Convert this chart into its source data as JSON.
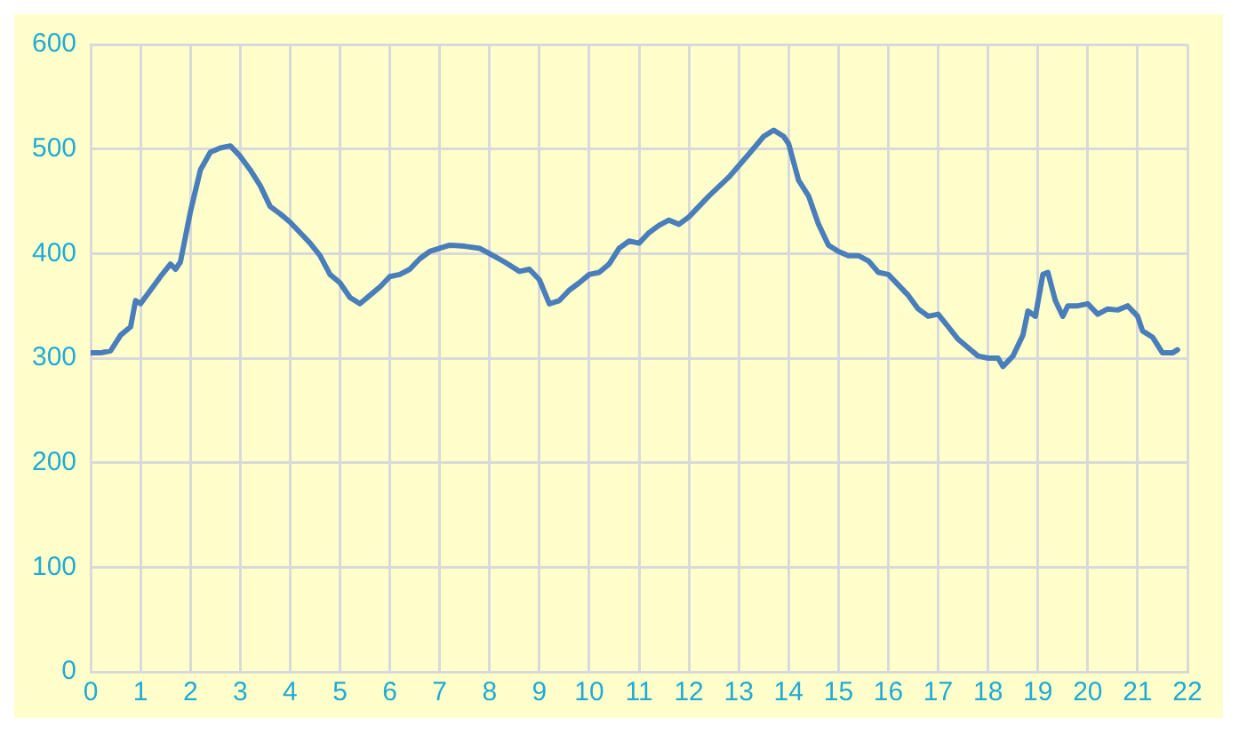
{
  "chart_data": {
    "type": "line",
    "xlim": [
      0,
      22
    ],
    "xticks": [
      0,
      1,
      2,
      3,
      4,
      5,
      6,
      7,
      8,
      9,
      10,
      11,
      12,
      13,
      14,
      15,
      16,
      17,
      18,
      19,
      20,
      21,
      22
    ],
    "ylim": [
      0,
      600
    ],
    "yticks": [
      0,
      100,
      200,
      300,
      400,
      500,
      600
    ],
    "grid": true,
    "marker": "none",
    "line_style": "solid",
    "series": [
      {
        "color": "#4a7ebb",
        "x": [
          0,
          0.2,
          0.4,
          0.6,
          0.8,
          0.9,
          1,
          1.2,
          1.4,
          1.6,
          1.7,
          1.8,
          2,
          2.2,
          2.4,
          2.6,
          2.8,
          3,
          3.2,
          3.4,
          3.6,
          3.8,
          4,
          4.2,
          4.4,
          4.6,
          4.8,
          5,
          5.2,
          5.4,
          5.6,
          5.8,
          6,
          6.2,
          6.4,
          6.6,
          6.8,
          7,
          7.2,
          7.5,
          7.8,
          8,
          8.3,
          8.6,
          8.8,
          9,
          9.2,
          9.4,
          9.6,
          9.8,
          10,
          10.2,
          10.4,
          10.6,
          10.8,
          11,
          11.2,
          11.4,
          11.6,
          11.8,
          12,
          12.4,
          12.8,
          13.2,
          13.5,
          13.7,
          13.9,
          14,
          14.2,
          14.4,
          14.6,
          14.8,
          15,
          15.2,
          15.4,
          15.6,
          15.8,
          16,
          16.2,
          16.4,
          16.6,
          16.8,
          17,
          17.2,
          17.4,
          17.6,
          17.8,
          18,
          18.2,
          18.3,
          18.5,
          18.7,
          18.8,
          18.95,
          19.1,
          19.2,
          19.35,
          19.5,
          19.6,
          19.8,
          20,
          20.2,
          20.4,
          20.6,
          20.8,
          21,
          21.1,
          21.3,
          21.5,
          21.7,
          21.8
        ],
        "values": [
          305,
          305,
          307,
          322,
          330,
          355,
          352,
          365,
          378,
          390,
          385,
          392,
          440,
          480,
          497,
          501,
          503,
          493,
          480,
          465,
          445,
          438,
          430,
          420,
          410,
          398,
          380,
          372,
          358,
          352,
          360,
          368,
          378,
          380,
          385,
          395,
          402,
          405,
          408,
          407,
          405,
          400,
          392,
          383,
          385,
          375,
          352,
          355,
          365,
          372,
          380,
          382,
          390,
          405,
          412,
          410,
          420,
          427,
          432,
          428,
          435,
          455,
          473,
          495,
          512,
          518,
          512,
          505,
          470,
          455,
          428,
          408,
          402,
          398,
          398,
          393,
          382,
          380,
          370,
          360,
          347,
          340,
          342,
          330,
          318,
          310,
          302,
          300,
          300,
          292,
          302,
          322,
          345,
          340,
          380,
          382,
          355,
          340,
          350,
          350,
          352,
          342,
          347,
          346,
          350,
          340,
          326,
          320,
          305,
          305,
          308
        ]
      }
    ]
  }
}
